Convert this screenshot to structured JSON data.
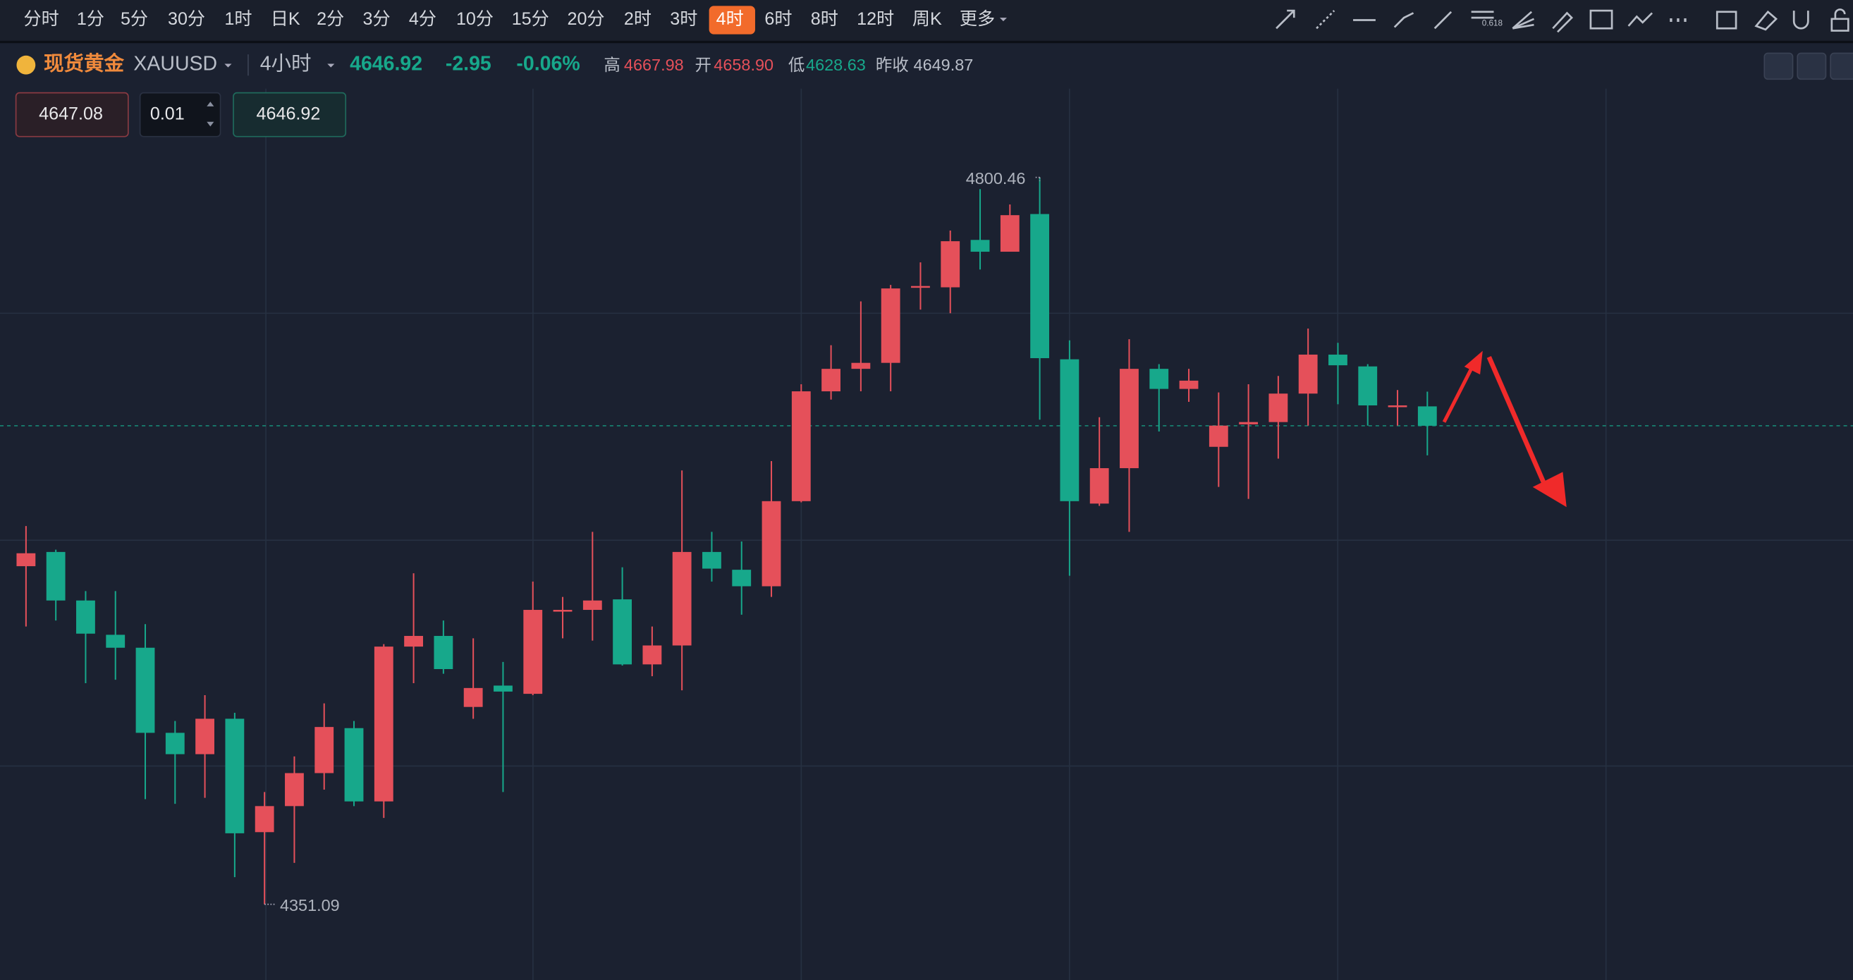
{
  "toolbar": {
    "periods": [
      "分时",
      "1分",
      "5分",
      "30分",
      "1时",
      "日K",
      "2分",
      "3分",
      "4分",
      "10分",
      "15分",
      "20分",
      "2时",
      "3时",
      "4时",
      "6时",
      "8时",
      "12时",
      "周K"
    ],
    "active": "4时",
    "more": "更多"
  },
  "quote": {
    "name": "现货黄金",
    "symbol": "XAUUSD",
    "interval": "4小时",
    "price": "4646.92",
    "change": "-2.95",
    "change_pct": "-0.06%",
    "high_label": "高",
    "high": "4667.98",
    "open_label": "开",
    "open": "4658.90",
    "low_label": "低",
    "low": "4628.63",
    "prev_label": "昨收",
    "prev_close": "4649.87"
  },
  "order": {
    "sell": "4647.08",
    "qty": "0.01",
    "buy": "4646.92"
  },
  "chart_data": {
    "type": "candlestick",
    "up_color": "#e5505a",
    "down_color": "#17a88b",
    "ylim": [
      4304.3,
      4855.3
    ],
    "candles": [
      {
        "o": 4560.1,
        "h": 4584.9,
        "l": 4522.8,
        "c": 4568.1
      },
      {
        "o": 4568.9,
        "h": 4570.3,
        "l": 4526.5,
        "c": 4538.9
      },
      {
        "o": 4538.9,
        "h": 4544.7,
        "l": 4487.8,
        "c": 4518.4
      },
      {
        "o": 4517.7,
        "h": 4544.7,
        "l": 4489.9,
        "c": 4509.7
      },
      {
        "o": 4509.7,
        "h": 4524.3,
        "l": 4416.1,
        "c": 4457.1
      },
      {
        "o": 4457.1,
        "h": 4464.4,
        "l": 4413.2,
        "c": 4443.9
      },
      {
        "o": 4443.9,
        "h": 4480.4,
        "l": 4416.9,
        "c": 4465.8
      },
      {
        "o": 4465.8,
        "h": 4469.5,
        "l": 4367.9,
        "c": 4395.0
      },
      {
        "o": 4395.7,
        "h": 4420.5,
        "l": 4351.09,
        "c": 4411.8
      },
      {
        "o": 4411.8,
        "h": 4442.5,
        "l": 4376.7,
        "c": 4432.2
      },
      {
        "o": 4432.2,
        "h": 4475.3,
        "l": 4422.0,
        "c": 4460.7
      },
      {
        "o": 4460.0,
        "h": 4464.4,
        "l": 4411.8,
        "c": 4414.7
      },
      {
        "o": 4414.7,
        "h": 4511.9,
        "l": 4404.5,
        "c": 4510.4
      },
      {
        "o": 4510.4,
        "h": 4555.7,
        "l": 4487.8,
        "c": 4517.0
      },
      {
        "o": 4517.0,
        "h": 4526.5,
        "l": 4493.6,
        "c": 4496.5
      },
      {
        "o": 4473.1,
        "h": 4515.5,
        "l": 4465.8,
        "c": 4484.8
      },
      {
        "o": 4486.3,
        "h": 4500.9,
        "l": 4420.5,
        "c": 4482.6
      },
      {
        "o": 4481.2,
        "h": 4550.6,
        "l": 4480.4,
        "c": 4533.1
      },
      {
        "o": 4532.3,
        "h": 4541.1,
        "l": 4515.5,
        "c": 4533.1
      },
      {
        "o": 4533.1,
        "h": 4581.3,
        "l": 4514.1,
        "c": 4538.9
      },
      {
        "o": 4539.6,
        "h": 4559.4,
        "l": 4498.7,
        "c": 4499.4
      },
      {
        "o": 4499.4,
        "h": 4522.8,
        "l": 4492.1,
        "c": 4511.1
      },
      {
        "o": 4511.1,
        "h": 4619.3,
        "l": 4483.4,
        "c": 4568.9
      },
      {
        "o": 4568.9,
        "h": 4581.3,
        "l": 4550.6,
        "c": 4558.6
      },
      {
        "o": 4557.9,
        "h": 4575.4,
        "l": 4530.1,
        "c": 4547.7
      },
      {
        "o": 4547.7,
        "h": 4625.1,
        "l": 4541.1,
        "c": 4600.3
      },
      {
        "o": 4600.3,
        "h": 4672.6,
        "l": 4599.6,
        "c": 4668.2
      },
      {
        "o": 4668.2,
        "h": 4696.7,
        "l": 4663.1,
        "c": 4682.1
      },
      {
        "o": 4682.1,
        "h": 4723.8,
        "l": 4668.2,
        "c": 4685.8
      },
      {
        "o": 4685.8,
        "h": 4734.0,
        "l": 4668.2,
        "c": 4731.8
      },
      {
        "o": 4732.5,
        "h": 4747.9,
        "l": 4718.7,
        "c": 4733.3
      },
      {
        "o": 4732.5,
        "h": 4767.6,
        "l": 4716.5,
        "c": 4761.0
      },
      {
        "o": 4761.8,
        "h": 4793.2,
        "l": 4743.5,
        "c": 4754.5
      },
      {
        "o": 4754.5,
        "h": 4783.7,
        "l": 4754.5,
        "c": 4777.1
      },
      {
        "o": 4777.8,
        "h": 4800.46,
        "l": 4650.7,
        "c": 4688.7
      },
      {
        "o": 4688.0,
        "h": 4699.7,
        "l": 4554.2,
        "c": 4600.3
      },
      {
        "o": 4598.8,
        "h": 4652.2,
        "l": 4597.4,
        "c": 4620.7
      },
      {
        "o": 4620.7,
        "h": 4700.4,
        "l": 4581.3,
        "c": 4682.1
      },
      {
        "o": 4682.1,
        "h": 4685.0,
        "l": 4643.4,
        "c": 4669.7
      },
      {
        "o": 4669.7,
        "h": 4682.1,
        "l": 4661.7,
        "c": 4674.8
      },
      {
        "o": 4633.9,
        "h": 4667.5,
        "l": 4609.1,
        "c": 4647.0
      },
      {
        "o": 4647.8,
        "h": 4672.6,
        "l": 4601.7,
        "c": 4649.2
      },
      {
        "o": 4649.2,
        "h": 4677.7,
        "l": 4626.6,
        "c": 4666.8
      },
      {
        "o": 4666.8,
        "h": 4707.0,
        "l": 4647.0,
        "c": 4690.9
      },
      {
        "o": 4690.9,
        "h": 4698.2,
        "l": 4660.2,
        "c": 4684.3
      },
      {
        "o": 4683.6,
        "h": 4685.0,
        "l": 4647.0,
        "c": 4659.5
      },
      {
        "o": 4658.7,
        "h": 4669.0,
        "l": 4647.0,
        "c": 4659.5
      },
      {
        "o": 4658.9,
        "h": 4667.98,
        "l": 4628.63,
        "c": 4646.92
      }
    ]
  }
}
